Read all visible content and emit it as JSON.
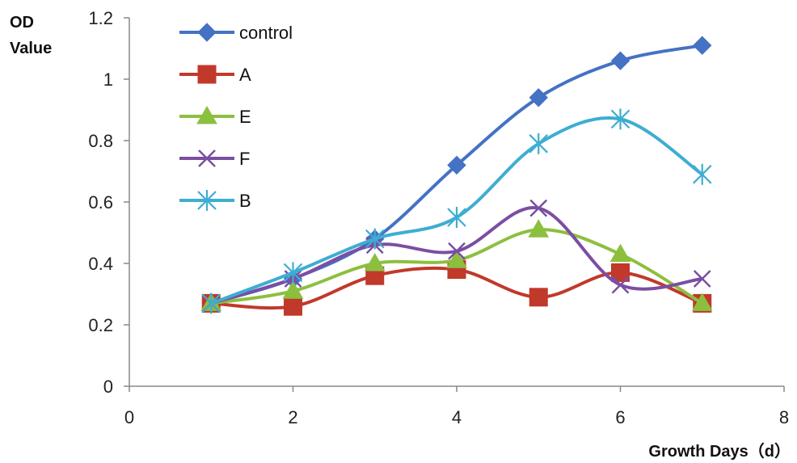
{
  "chart_data": {
    "type": "line",
    "title": "",
    "ylabel_line1": "OD",
    "ylabel_line2": "Value",
    "xlabel": "Growth Days（d）",
    "xlim": [
      0,
      8
    ],
    "ylim": [
      0,
      1.2
    ],
    "x_ticks": [
      "0",
      "2",
      "4",
      "6",
      "8"
    ],
    "y_ticks": [
      "0",
      "0.2",
      "0.4",
      "0.6",
      "0.8",
      "1",
      "1.2"
    ],
    "grid": false,
    "smooth": true,
    "legend_placement": "top-left",
    "x": [
      1,
      2,
      3,
      4,
      5,
      6,
      7
    ],
    "series": [
      {
        "name": "control",
        "marker": "diamond",
        "color": "#4472C4",
        "values": [
          0.27,
          0.35,
          0.48,
          0.72,
          0.94,
          1.06,
          1.11
        ]
      },
      {
        "name": "A",
        "marker": "square",
        "color": "#C0392B",
        "values": [
          0.27,
          0.26,
          0.36,
          0.38,
          0.29,
          0.37,
          0.27
        ]
      },
      {
        "name": "E",
        "marker": "triangle",
        "color": "#8DBF3F",
        "values": [
          0.27,
          0.31,
          0.4,
          0.41,
          0.51,
          0.43,
          0.27
        ]
      },
      {
        "name": "F",
        "marker": "x",
        "color": "#7B4EA3",
        "values": [
          0.27,
          0.35,
          0.46,
          0.44,
          0.58,
          0.33,
          0.35
        ]
      },
      {
        "name": "B",
        "marker": "star",
        "color": "#3EADD2",
        "values": [
          0.27,
          0.37,
          0.48,
          0.55,
          0.79,
          0.87,
          0.69
        ]
      }
    ]
  }
}
